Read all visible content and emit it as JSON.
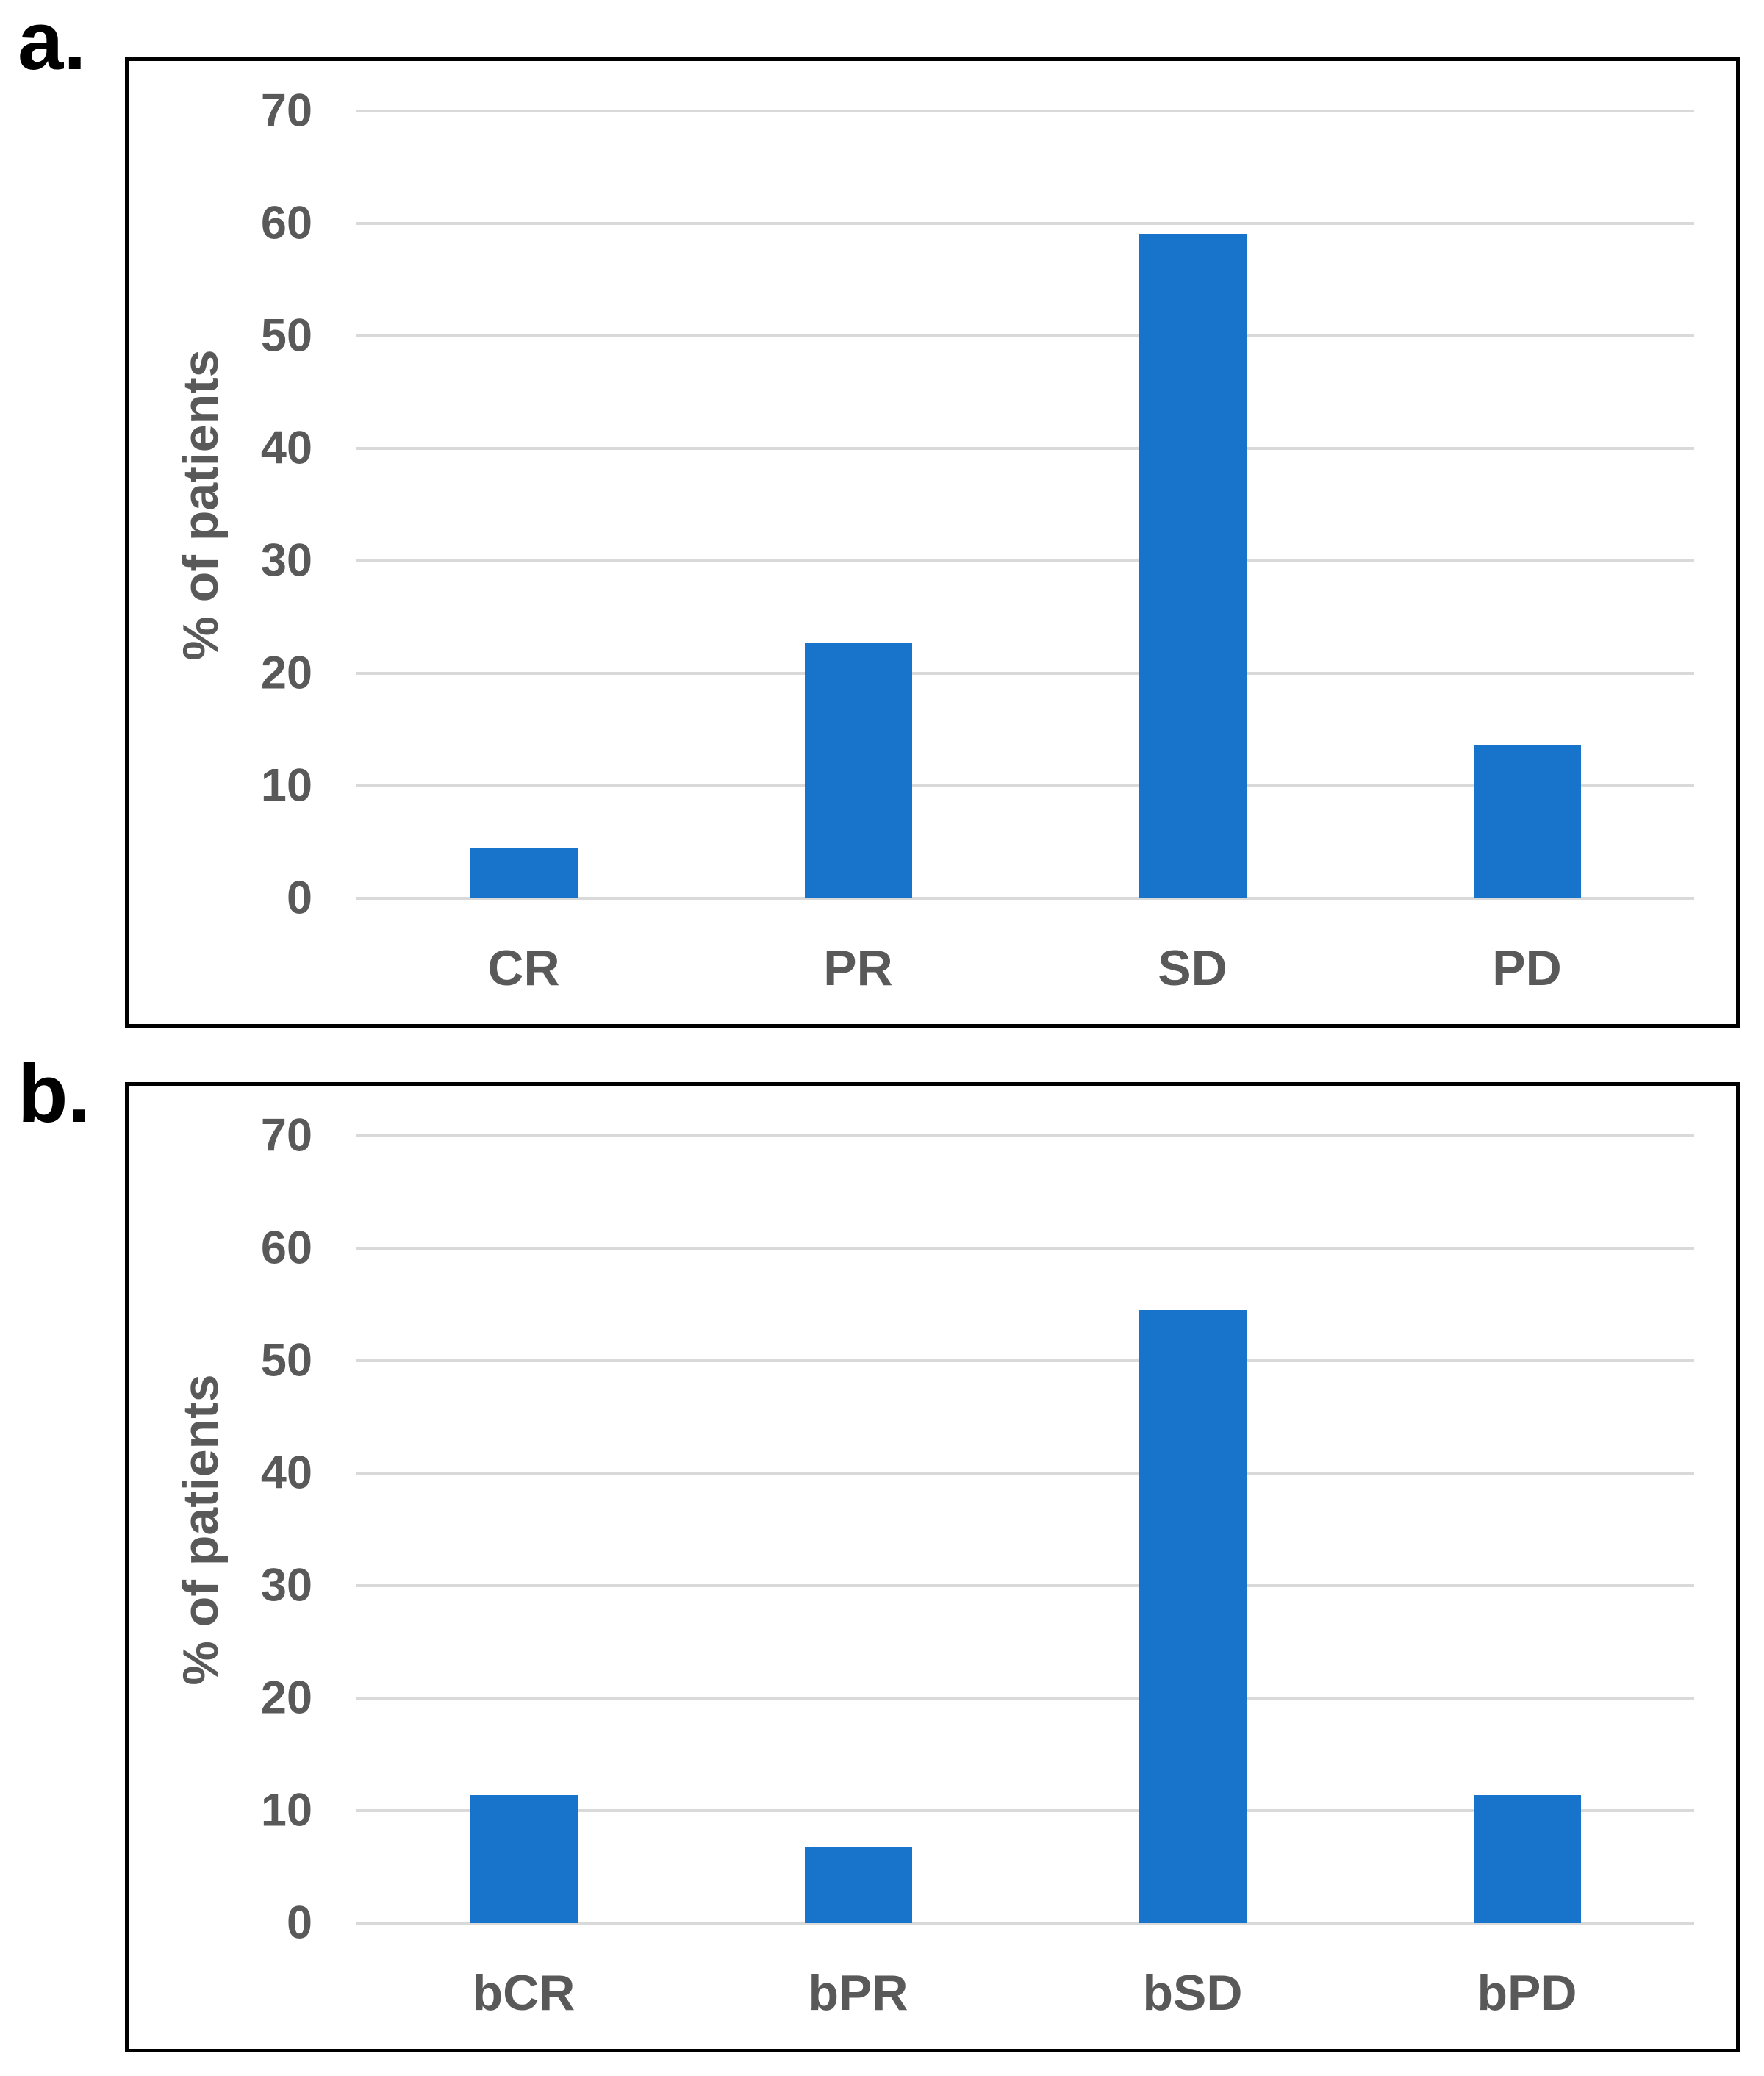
{
  "figure": {
    "panel_a_label": "a.",
    "panel_b_label": "b.",
    "background_color": "#FFFFFF",
    "frame_border_color": "#000000"
  },
  "chart_data": [
    {
      "type": "bar",
      "panel": "a",
      "title": "",
      "categories": [
        "CR",
        "PR",
        "SD",
        "PD"
      ],
      "values": [
        4.5,
        22.7,
        59.1,
        13.6
      ],
      "xlabel": "",
      "ylabel": "% of patients",
      "ylim": [
        0,
        70
      ],
      "yticks": [
        0,
        10,
        20,
        30,
        40,
        50,
        60,
        70
      ],
      "grid": true,
      "legend": false,
      "bar_color": "#1874CA",
      "label_color": "#595959",
      "gridline_color": "#D9D9D9"
    },
    {
      "type": "bar",
      "panel": "b",
      "title": "",
      "categories": [
        "bCR",
        "bPR",
        "bSD",
        "bPD"
      ],
      "values": [
        11.4,
        6.8,
        54.5,
        11.4
      ],
      "xlabel": "",
      "ylabel": "% of patients",
      "ylim": [
        0,
        70
      ],
      "yticks": [
        0,
        10,
        20,
        30,
        40,
        50,
        60,
        70
      ],
      "grid": true,
      "legend": false,
      "bar_color": "#1874CA",
      "label_color": "#595959",
      "gridline_color": "#D9D9D9"
    }
  ]
}
